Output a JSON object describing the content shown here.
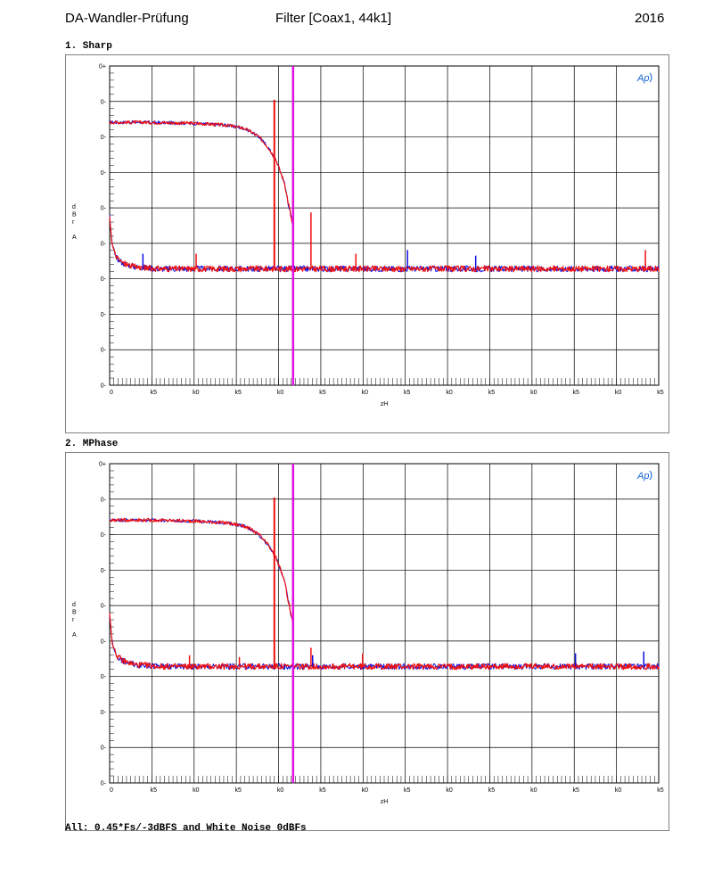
{
  "header": {
    "left": "DA-Wandler-Prüfung",
    "center": "Filter [Coax1, 44k1]",
    "right": "2016"
  },
  "footnote": "All: 0.45*Fs/-3dBFS and White Noise 0dBFs",
  "colors": {
    "blue": "#1010e0",
    "red": "#ee1111",
    "marker": "#e010e0",
    "grid": "#000000",
    "logo": "#1060d0"
  },
  "chart_data": [
    {
      "type": "line",
      "title": "1. Sharp",
      "logo": "Ap",
      "ylabel_chars": [
        "d",
        "B",
        "r",
        "",
        "A"
      ],
      "xlabel": "zH",
      "x_tick_labels": [
        "0",
        "k5",
        "k0",
        "k5",
        "k0",
        "k5",
        "k0",
        "k5",
        "k0",
        "k5",
        "k0",
        "k5",
        "k0",
        "k5"
      ],
      "y_tick_labels": [
        "0+",
        "0-",
        "0-",
        "0-",
        "0-",
        "0-",
        "0-",
        "0-",
        "0-",
        "0-"
      ],
      "xlim": [
        0,
        33000
      ],
      "ylim": [
        -160,
        10
      ],
      "marker_x": 11025,
      "series": [
        {
          "color": "blue",
          "points": [
            [
              0,
              -20
            ],
            [
              2000,
              -20
            ],
            [
              5000,
              -20.5
            ],
            [
              7000,
              -21.5
            ],
            [
              8000,
              -23
            ],
            [
              8500,
              -25
            ],
            [
              9000,
              -28
            ],
            [
              9500,
              -33
            ],
            [
              10000,
              -40
            ],
            [
              10500,
              -52
            ],
            [
              11000,
              -75
            ],
            [
              11025,
              -80
            ]
          ]
        },
        {
          "color": "red",
          "points": [
            [
              0,
              -20
            ],
            [
              2000,
              -20
            ],
            [
              5000,
              -20.5
            ],
            [
              7000,
              -21.5
            ],
            [
              8000,
              -23
            ],
            [
              8500,
              -25
            ],
            [
              9000,
              -28
            ],
            [
              9500,
              -33
            ],
            [
              10000,
              -40
            ],
            [
              10500,
              -52
            ],
            [
              11000,
              -75
            ],
            [
              11025,
              -80
            ]
          ]
        },
        {
          "color": "blue",
          "points": [
            [
              0,
              -70
            ],
            [
              150,
              -85
            ],
            [
              400,
              -92
            ],
            [
              800,
              -95
            ],
            [
              1500,
              -97
            ],
            [
              3000,
              -98
            ],
            [
              33000,
              -98
            ]
          ]
        },
        {
          "color": "red",
          "points": [
            [
              0,
              -70
            ],
            [
              150,
              -85
            ],
            [
              400,
              -92
            ],
            [
              800,
              -95
            ],
            [
              1500,
              -97
            ],
            [
              3000,
              -98
            ],
            [
              33000,
              -98
            ]
          ]
        }
      ],
      "spikes": [
        {
          "x": 9900,
          "y": -8,
          "color": "red"
        },
        {
          "x": 12100,
          "y": -68,
          "color": "red"
        },
        {
          "x": 2000,
          "y": -90,
          "color": "blue"
        },
        {
          "x": 5200,
          "y": -90,
          "color": "red"
        },
        {
          "x": 14800,
          "y": -90,
          "color": "red"
        },
        {
          "x": 17900,
          "y": -88,
          "color": "blue"
        },
        {
          "x": 22000,
          "y": -91,
          "color": "blue"
        },
        {
          "x": 32200,
          "y": -88,
          "color": "red"
        }
      ]
    },
    {
      "type": "line",
      "title": "2. MPhase",
      "logo": "Ap",
      "ylabel_chars": [
        "d",
        "B",
        "r",
        "",
        "A"
      ],
      "xlabel": "zH",
      "x_tick_labels": [
        "0",
        "k5",
        "k0",
        "k5",
        "k0",
        "k5",
        "k0",
        "k5",
        "k0",
        "k5",
        "k0",
        "k5",
        "k0",
        "k5"
      ],
      "y_tick_labels": [
        "0+",
        "0-",
        "0-",
        "0-",
        "0-",
        "0-",
        "0-",
        "0-",
        "0-",
        "0-"
      ],
      "xlim": [
        0,
        33000
      ],
      "ylim": [
        -160,
        10
      ],
      "marker_x": 11025,
      "series": [
        {
          "color": "blue",
          "points": [
            [
              0,
              -20
            ],
            [
              2000,
              -20
            ],
            [
              5000,
              -20.5
            ],
            [
              7000,
              -21.5
            ],
            [
              8000,
              -23
            ],
            [
              8500,
              -25
            ],
            [
              9000,
              -28
            ],
            [
              9500,
              -33
            ],
            [
              10000,
              -40
            ],
            [
              10500,
              -52
            ],
            [
              11000,
              -75
            ],
            [
              11025,
              -80
            ]
          ]
        },
        {
          "color": "red",
          "points": [
            [
              0,
              -20
            ],
            [
              2000,
              -20
            ],
            [
              5000,
              -20.5
            ],
            [
              7000,
              -21.5
            ],
            [
              8000,
              -23
            ],
            [
              8500,
              -25
            ],
            [
              9000,
              -28
            ],
            [
              9500,
              -33
            ],
            [
              10000,
              -40
            ],
            [
              10500,
              -52
            ],
            [
              11000,
              -75
            ],
            [
              11025,
              -80
            ]
          ]
        },
        {
          "color": "blue",
          "points": [
            [
              0,
              -70
            ],
            [
              150,
              -85
            ],
            [
              400,
              -92
            ],
            [
              800,
              -95
            ],
            [
              1500,
              -97
            ],
            [
              3000,
              -98
            ],
            [
              33000,
              -98
            ]
          ]
        },
        {
          "color": "red",
          "points": [
            [
              0,
              -70
            ],
            [
              150,
              -85
            ],
            [
              400,
              -92
            ],
            [
              800,
              -95
            ],
            [
              1500,
              -97
            ],
            [
              3000,
              -98
            ],
            [
              33000,
              -98
            ]
          ]
        }
      ],
      "spikes": [
        {
          "x": 9900,
          "y": -8,
          "color": "red"
        },
        {
          "x": 12100,
          "y": -88,
          "color": "red"
        },
        {
          "x": 4800,
          "y": -92,
          "color": "red"
        },
        {
          "x": 7800,
          "y": -93,
          "color": "red"
        },
        {
          "x": 15200,
          "y": -91,
          "color": "red"
        },
        {
          "x": 12200,
          "y": -92,
          "color": "blue"
        },
        {
          "x": 28000,
          "y": -91,
          "color": "blue"
        },
        {
          "x": 32100,
          "y": -90,
          "color": "blue"
        }
      ]
    }
  ]
}
